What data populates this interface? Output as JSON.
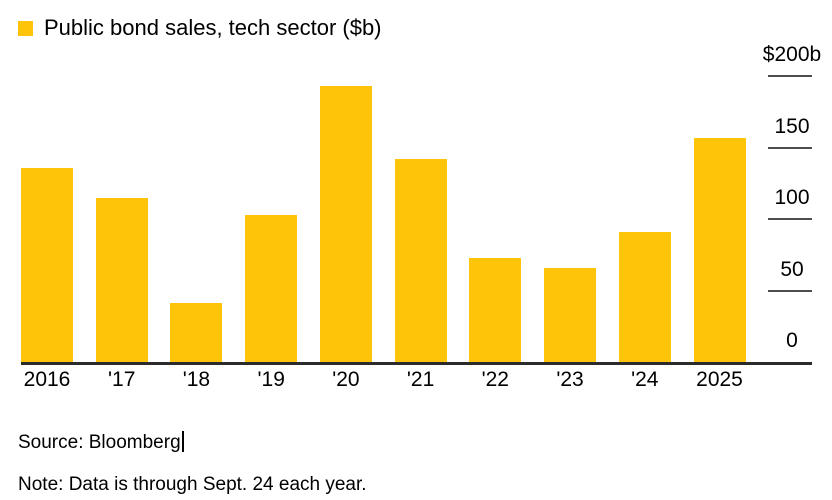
{
  "legend": {
    "label": "Public bond sales, tech sector ($b)"
  },
  "colors": {
    "bar": "#fdc40a",
    "axis_line": "#2b2b2b",
    "tick": "#4d4d4d",
    "text": "#000000"
  },
  "chart_data": {
    "type": "bar",
    "title": "Public bond sales, tech sector ($b)",
    "categories": [
      "2016",
      "'17",
      "'18",
      "'19",
      "'20",
      "'21",
      "'22",
      "'23",
      "'24",
      "2025"
    ],
    "values": [
      136,
      115,
      41,
      103,
      193,
      142,
      73,
      66,
      91,
      157
    ],
    "xlabel": "",
    "ylabel": "$b",
    "ylim": [
      0,
      200
    ],
    "yticks": [
      {
        "value": 200,
        "label": "$200b"
      },
      {
        "value": 150,
        "label": "150"
      },
      {
        "value": 100,
        "label": "100"
      },
      {
        "value": 50,
        "label": "50"
      },
      {
        "value": 0,
        "label": "0"
      }
    ],
    "grid": false,
    "legend_position": "top-left",
    "bar_color": "#fdc40a"
  },
  "footer": {
    "source": "Source: Bloomberg",
    "note": "Note: Data is through Sept. 24 each year."
  }
}
